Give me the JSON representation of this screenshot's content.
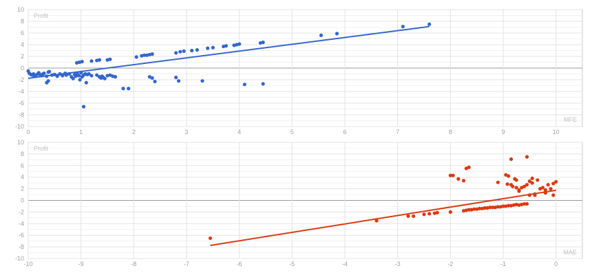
{
  "colors": {
    "grid": "#e3e3e3",
    "frame": "#c8c8c8",
    "zero": "#9a9a9a"
  },
  "chart_data": [
    {
      "type": "scatter",
      "title": "",
      "xlabel": "MFE",
      "ylabel": "Profit",
      "xlim": [
        0,
        10.5
      ],
      "ylim": [
        -10,
        10
      ],
      "x_ticks": [
        0,
        1,
        2,
        3,
        4,
        5,
        6,
        7,
        8,
        9,
        10
      ],
      "y_ticks": [
        -10,
        -8,
        -6,
        -4,
        -2,
        0,
        2,
        4,
        6,
        8,
        10
      ],
      "grid": true,
      "color": "#3366cc",
      "trendline": {
        "x": [
          0,
          7.6
        ],
        "y": [
          -1.75,
          7.1
        ]
      },
      "series": [
        {
          "x": [
            0.0,
            0.02,
            0.05,
            0.08,
            0.1,
            0.12,
            0.15,
            0.18,
            0.2,
            0.22,
            0.25,
            0.28,
            0.3,
            0.35,
            0.38,
            0.4,
            0.45,
            0.5,
            0.55,
            0.6,
            0.65,
            0.7,
            0.72,
            0.78,
            0.82,
            0.85,
            0.88,
            0.9,
            0.93,
            0.96,
            0.98,
            1.0,
            1.02,
            1.05,
            1.08,
            1.1,
            1.12,
            1.15,
            1.2,
            1.3,
            1.35,
            1.38,
            1.4,
            1.42,
            1.45,
            1.5,
            1.55,
            1.6,
            1.65,
            0.35,
            0.38,
            1.05,
            1.8,
            1.9,
            0.92,
            0.97,
            1.02,
            1.2,
            1.3,
            1.35,
            1.5,
            1.55,
            2.05,
            2.15,
            2.2,
            2.25,
            2.3,
            2.35,
            2.8,
            2.88,
            2.95,
            3.1,
            3.2,
            3.4,
            3.5,
            3.7,
            3.75,
            3.9,
            3.95,
            4.0,
            4.4,
            4.45,
            2.3,
            2.35,
            2.4,
            2.8,
            2.85,
            3.3,
            4.1,
            4.45,
            5.55,
            5.85,
            7.1,
            7.6
          ],
          "y": [
            -0.5,
            -0.9,
            -1.1,
            -1.2,
            -1.0,
            -1.3,
            -1.2,
            -1.0,
            -0.8,
            -1.1,
            -1.3,
            -1.0,
            -0.9,
            -1.4,
            -0.7,
            -0.6,
            -1.2,
            -1.1,
            -1.4,
            -1.0,
            -1.3,
            -0.9,
            -1.2,
            -1.0,
            -1.5,
            -1.8,
            -1.1,
            -1.4,
            -1.0,
            -1.3,
            -2.0,
            -0.8,
            -1.5,
            -1.2,
            -1.0,
            -2.5,
            -1.1,
            -1.0,
            -1.3,
            -1.2,
            -1.5,
            -1.7,
            -1.4,
            -1.6,
            -1.8,
            -1.3,
            -1.2,
            -1.4,
            -1.5,
            -2.5,
            -2.2,
            -6.6,
            -3.5,
            -3.5,
            0.9,
            1.0,
            1.1,
            1.2,
            1.3,
            1.4,
            1.4,
            1.5,
            1.9,
            2.1,
            2.2,
            2.2,
            2.3,
            2.4,
            2.6,
            2.8,
            2.9,
            3.0,
            3.1,
            3.4,
            3.5,
            3.7,
            3.8,
            3.9,
            4.0,
            4.1,
            4.3,
            4.4,
            -1.5,
            -1.7,
            -2.3,
            -1.6,
            -2.2,
            -2.2,
            -2.8,
            -2.7,
            5.6,
            5.9,
            7.1,
            7.5
          ]
        }
      ]
    },
    {
      "type": "scatter",
      "title": "",
      "xlabel": "MAE",
      "ylabel": "Profit",
      "xlim": [
        -10,
        0.5
      ],
      "ylim": [
        -10,
        10
      ],
      "x_ticks": [
        -10,
        -9,
        -8,
        -7,
        -6,
        -5,
        -4,
        -3,
        -2,
        -1,
        0
      ],
      "y_ticks": [
        -10,
        -8,
        -6,
        -4,
        -2,
        0,
        2,
        4,
        6,
        8,
        10
      ],
      "grid": true,
      "color": "#dc3912",
      "trendline": {
        "x": [
          -6.55,
          0.0
        ],
        "y": [
          -7.75,
          1.75
        ]
      },
      "series": [
        {
          "x": [
            -6.55,
            -3.4,
            -2.8,
            -2.7,
            -2.5,
            -2.4,
            -2.3,
            -2.25,
            -2.0,
            -1.75,
            -1.7,
            -1.65,
            -1.6,
            -1.55,
            -1.5,
            -1.45,
            -1.4,
            -1.35,
            -1.3,
            -1.25,
            -1.2,
            -1.15,
            -1.1,
            -1.05,
            -1.0,
            -0.95,
            -0.9,
            -0.85,
            -0.8,
            -0.75,
            -0.7,
            -0.65,
            -0.6,
            -0.55,
            -0.5,
            -2.0,
            -1.95,
            -1.85,
            -1.75,
            -1.7,
            -1.65,
            -1.1,
            -0.95,
            -0.92,
            -0.9,
            -0.85,
            -0.82,
            -0.78,
            -0.75,
            -0.7,
            -0.65,
            -0.6,
            -0.55,
            -0.5,
            -0.45,
            -0.4,
            -0.35,
            -0.3,
            -0.25,
            -0.2,
            -0.15,
            -0.1,
            -0.05,
            0.0,
            -0.85,
            -0.55,
            -0.75,
            -0.7,
            -0.45,
            -0.4,
            -0.2,
            -0.05
          ],
          "y": [
            -6.5,
            -3.5,
            -2.7,
            -2.7,
            -2.4,
            -2.3,
            -2.2,
            -2.1,
            -2.0,
            -1.8,
            -1.7,
            -1.6,
            -1.6,
            -1.5,
            -1.5,
            -1.4,
            -1.4,
            -1.3,
            -1.3,
            -1.2,
            -1.2,
            -1.2,
            -1.1,
            -1.1,
            -1.0,
            -1.0,
            -0.9,
            -0.9,
            -0.8,
            -0.7,
            -0.8,
            -0.7,
            -0.6,
            -0.6,
            0.9,
            4.3,
            4.3,
            3.7,
            3.4,
            5.5,
            5.7,
            3.1,
            4.4,
            2.8,
            4.2,
            2.7,
            2.4,
            3.7,
            3.5,
            1.6,
            2.2,
            2.4,
            2.7,
            3.3,
            3.8,
            1.1,
            3.5,
            2.0,
            2.2,
            1.3,
            2.7,
            2.0,
            2.9,
            3.2,
            7.1,
            7.5,
            2.2,
            1.8,
            3.0,
            0.9,
            1.8,
            0.9
          ]
        }
      ]
    }
  ]
}
